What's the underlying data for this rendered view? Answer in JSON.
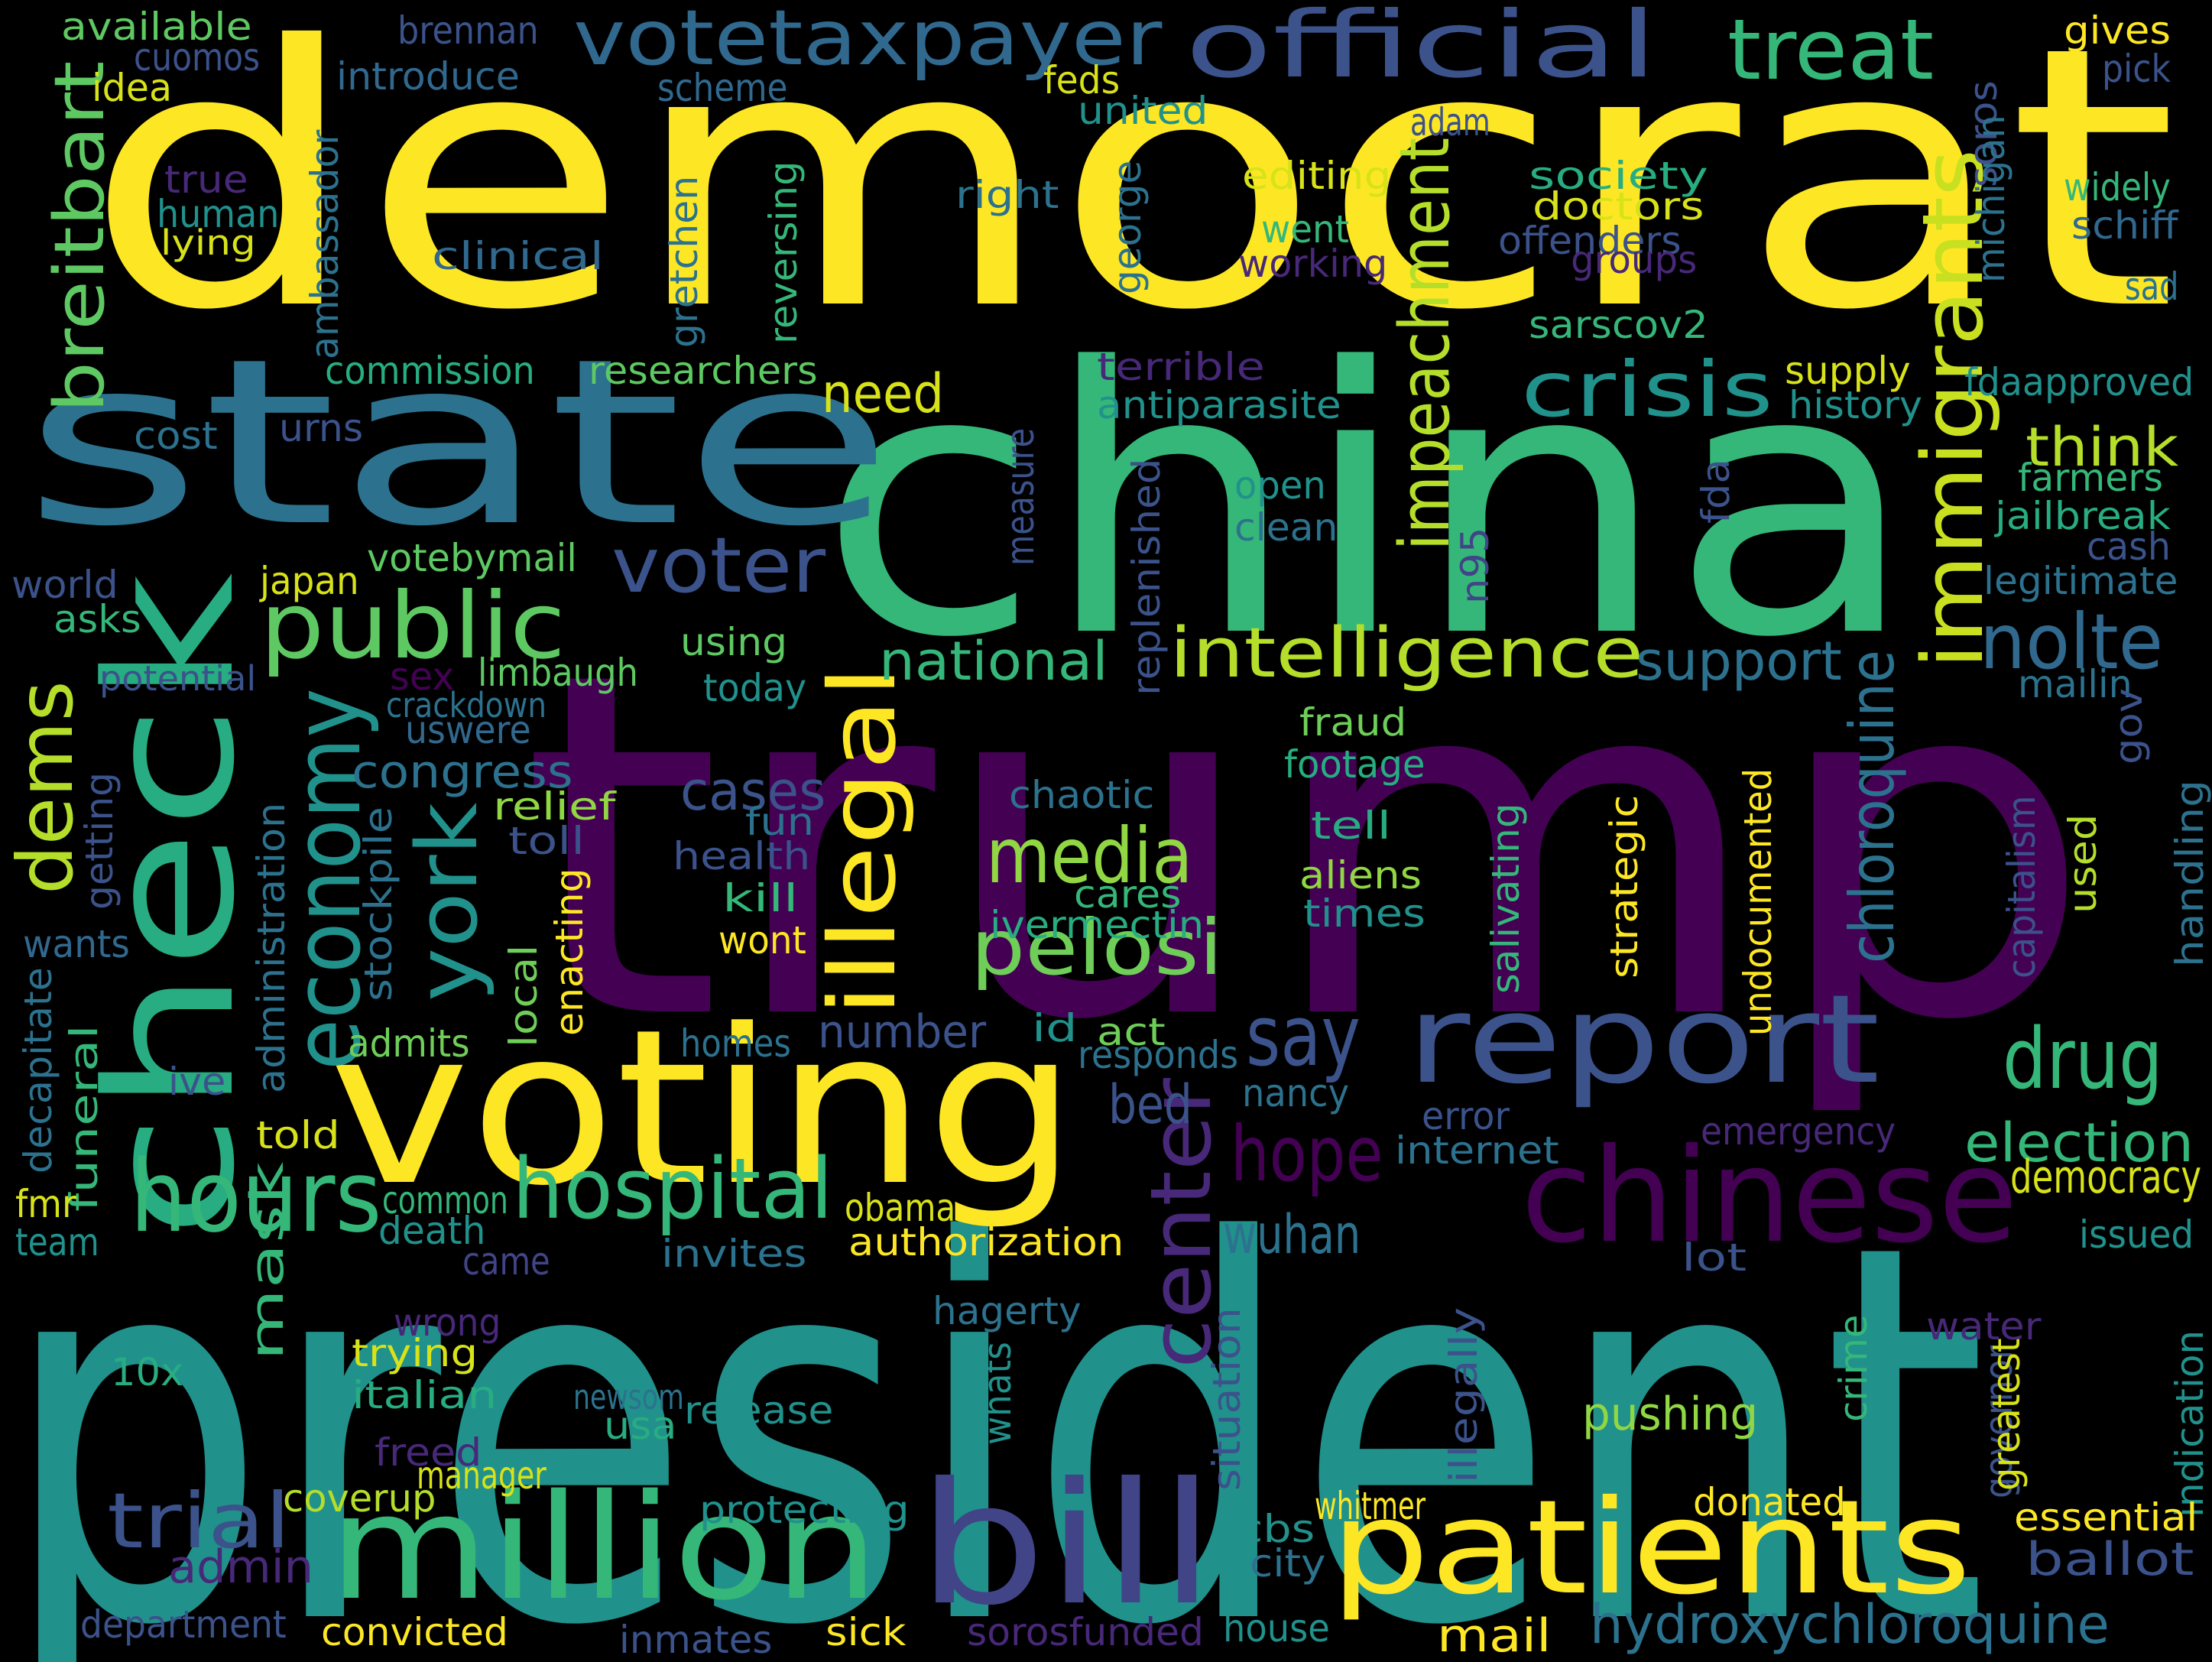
{
  "words": [
    {
      "text": "trump",
      "color": "#440154"
    },
    {
      "text": "president",
      "color": "#21918c"
    },
    {
      "text": "democrat",
      "color": "#fde725"
    },
    {
      "text": "china",
      "color": "#35b779"
    },
    {
      "text": "state",
      "color": "#2c728e"
    },
    {
      "text": "check",
      "color": "#27ad81"
    },
    {
      "text": "voting",
      "color": "#fde725"
    },
    {
      "text": "million",
      "color": "#35b779"
    },
    {
      "text": "bill",
      "color": "#414487"
    },
    {
      "text": "patients",
      "color": "#fde725"
    },
    {
      "text": "report",
      "color": "#3b528b"
    },
    {
      "text": "official",
      "color": "#3b528b"
    },
    {
      "text": "chinese",
      "color": "#440154"
    },
    {
      "text": "votetaxpayer",
      "color": "#31688e"
    },
    {
      "text": "treat",
      "color": "#35b779"
    },
    {
      "text": "hours",
      "color": "#35b779"
    },
    {
      "text": "hospital",
      "color": "#35b779"
    },
    {
      "text": "public",
      "color": "#5ec962"
    },
    {
      "text": "crisis",
      "color": "#21918c"
    },
    {
      "text": "voter",
      "color": "#3b528b"
    },
    {
      "text": "intelligence",
      "color": "#b5de2b"
    },
    {
      "text": "media",
      "color": "#90d743"
    },
    {
      "text": "pelosi",
      "color": "#6ece58"
    },
    {
      "text": "drug",
      "color": "#35b779"
    },
    {
      "text": "hope",
      "color": "#440154"
    },
    {
      "text": "nolte",
      "color": "#31688e"
    },
    {
      "text": "say",
      "color": "#3b528b"
    },
    {
      "text": "trial",
      "color": "#3b528b"
    },
    {
      "text": "immigrants",
      "color": "#c8e020"
    },
    {
      "text": "impeachment",
      "color": "#b5de2b"
    },
    {
      "text": "economy",
      "color": "#21918c"
    },
    {
      "text": "york",
      "color": "#21918c"
    },
    {
      "text": "illegal",
      "color": "#fde725"
    },
    {
      "text": "center",
      "color": "#482878"
    },
    {
      "text": "breitbart",
      "color": "#5ec962"
    },
    {
      "text": "dems",
      "color": "#b5de2b"
    },
    {
      "text": "hydroxychloroquine",
      "color": "#2c728e"
    },
    {
      "text": "election",
      "color": "#35b779"
    },
    {
      "text": "chloroquine",
      "color": "#2c728e"
    },
    {
      "text": "need",
      "color": "#d8e219"
    },
    {
      "text": "national",
      "color": "#35b779"
    },
    {
      "text": "congress",
      "color": "#2c728e"
    },
    {
      "text": "cases",
      "color": "#3b528b"
    },
    {
      "text": "wuhan",
      "color": "#2c728e"
    },
    {
      "text": "mail",
      "color": "#fde725"
    },
    {
      "text": "ballot",
      "color": "#3b528b"
    },
    {
      "text": "think",
      "color": "#b5de2b"
    },
    {
      "text": "support",
      "color": "#2c728e"
    },
    {
      "text": "admin",
      "color": "#482878"
    },
    {
      "text": "bed",
      "color": "#3b528b"
    },
    {
      "text": "number",
      "color": "#3b528b"
    },
    {
      "text": "mask",
      "color": "#35b779"
    },
    {
      "text": "pushing",
      "color": "#90d743"
    },
    {
      "text": "democracy",
      "color": "#d8e219"
    },
    {
      "text": "authorization",
      "color": "#fde725"
    },
    {
      "text": "available",
      "color": "#5ec962"
    },
    {
      "text": "cuomos",
      "color": "#3b528b"
    },
    {
      "text": "brennan",
      "color": "#3b528b"
    },
    {
      "text": "introduce",
      "color": "#31688e"
    },
    {
      "text": "idea",
      "color": "#d8e219"
    },
    {
      "text": "scheme",
      "color": "#31688e"
    },
    {
      "text": "feds",
      "color": "#d8e219"
    },
    {
      "text": "united",
      "color": "#21918c"
    },
    {
      "text": "adam",
      "color": "#3b528b"
    },
    {
      "text": "soros",
      "color": "#3b528b"
    },
    {
      "text": "gives",
      "color": "#fde725"
    },
    {
      "text": "pick",
      "color": "#3b528b"
    },
    {
      "text": "true",
      "color": "#482878"
    },
    {
      "text": "human",
      "color": "#21918c"
    },
    {
      "text": "lying",
      "color": "#d8e219"
    },
    {
      "text": "ambassador",
      "color": "#2c728e"
    },
    {
      "text": "gretchen",
      "color": "#2c728e"
    },
    {
      "text": "reversing",
      "color": "#35b779"
    },
    {
      "text": "right",
      "color": "#2c728e"
    },
    {
      "text": "george",
      "color": "#2c728e"
    },
    {
      "text": "editing",
      "color": "#d8e219"
    },
    {
      "text": "society",
      "color": "#27ad81"
    },
    {
      "text": "doctors",
      "color": "#d8e219"
    },
    {
      "text": "offenders",
      "color": "#3b528b"
    },
    {
      "text": "groups",
      "color": "#482878"
    },
    {
      "text": "went",
      "color": "#35b779"
    },
    {
      "text": "working",
      "color": "#482878"
    },
    {
      "text": "clinical",
      "color": "#31688e"
    },
    {
      "text": "michigan",
      "color": "#2c728e"
    },
    {
      "text": "widely",
      "color": "#35b779"
    },
    {
      "text": "schiff",
      "color": "#31688e"
    },
    {
      "text": "sad",
      "color": "#2c728e"
    },
    {
      "text": "sarscov2",
      "color": "#35b779"
    },
    {
      "text": "commission",
      "color": "#27ad81"
    },
    {
      "text": "researchers",
      "color": "#5ec962"
    },
    {
      "text": "terrible",
      "color": "#482878"
    },
    {
      "text": "antiparasite",
      "color": "#21918c"
    },
    {
      "text": "supply",
      "color": "#d8e219"
    },
    {
      "text": "history",
      "color": "#21918c"
    },
    {
      "text": "fdaapproved",
      "color": "#21918c"
    },
    {
      "text": "cost",
      "color": "#2c728e"
    },
    {
      "text": "urns",
      "color": "#3b528b"
    },
    {
      "text": "farmers",
      "color": "#35b779"
    },
    {
      "text": "open",
      "color": "#21918c"
    },
    {
      "text": "clean",
      "color": "#2c728e"
    },
    {
      "text": "measure",
      "color": "#3b528b"
    },
    {
      "text": "replenished",
      "color": "#3b528b"
    },
    {
      "text": "fda",
      "color": "#3b528b"
    },
    {
      "text": "jailbreak",
      "color": "#27ad81"
    },
    {
      "text": "cash",
      "color": "#3b528b"
    },
    {
      "text": "world",
      "color": "#3b528b"
    },
    {
      "text": "asks",
      "color": "#35b779"
    },
    {
      "text": "japan",
      "color": "#d8e219"
    },
    {
      "text": "votebymail",
      "color": "#5ec962"
    },
    {
      "text": "n95",
      "color": "#414487"
    },
    {
      "text": "legitimate",
      "color": "#2c728e"
    },
    {
      "text": "potential",
      "color": "#3b528b"
    },
    {
      "text": "sex",
      "color": "#440154"
    },
    {
      "text": "limbaugh",
      "color": "#5ec962"
    },
    {
      "text": "using",
      "color": "#5ec962"
    },
    {
      "text": "today",
      "color": "#21918c"
    },
    {
      "text": "crackdown",
      "color": "#2c728e"
    },
    {
      "text": "uswere",
      "color": "#31688e"
    },
    {
      "text": "mailin",
      "color": "#2c728e"
    },
    {
      "text": "gov",
      "color": "#3b528b"
    },
    {
      "text": "fraud",
      "color": "#6ece58"
    },
    {
      "text": "footage",
      "color": "#27ad81"
    },
    {
      "text": "chaotic",
      "color": "#2c728e"
    },
    {
      "text": "getting",
      "color": "#3b528b"
    },
    {
      "text": "relief",
      "color": "#90d743"
    },
    {
      "text": "toll",
      "color": "#3b528b"
    },
    {
      "text": "fun",
      "color": "#2c728e"
    },
    {
      "text": "health",
      "color": "#3b528b"
    },
    {
      "text": "tell",
      "color": "#27ad81"
    },
    {
      "text": "aliens",
      "color": "#90d743"
    },
    {
      "text": "times",
      "color": "#21918c"
    },
    {
      "text": "cares",
      "color": "#35b779"
    },
    {
      "text": "ivermectin",
      "color": "#27ad81"
    },
    {
      "text": "kill",
      "color": "#35b779"
    },
    {
      "text": "wont",
      "color": "#fde725"
    },
    {
      "text": "administration",
      "color": "#2c728e"
    },
    {
      "text": "stockpile",
      "color": "#2c728e"
    },
    {
      "text": "local",
      "color": "#6ece58"
    },
    {
      "text": "enacting",
      "color": "#fde725"
    },
    {
      "text": "salivating",
      "color": "#35b779"
    },
    {
      "text": "strategic",
      "color": "#fde725"
    },
    {
      "text": "undocumented",
      "color": "#fde725"
    },
    {
      "text": "capitalism",
      "color": "#3b528b"
    },
    {
      "text": "used",
      "color": "#b5de2b"
    },
    {
      "text": "handling",
      "color": "#2c728e"
    },
    {
      "text": "wants",
      "color": "#31688e"
    },
    {
      "text": "decapitate",
      "color": "#2c728e"
    },
    {
      "text": "admits",
      "color": "#6ece58"
    },
    {
      "text": "homes",
      "color": "#2c728e"
    },
    {
      "text": "id",
      "color": "#21918c"
    },
    {
      "text": "act",
      "color": "#6ece58"
    },
    {
      "text": "responds",
      "color": "#2c728e"
    },
    {
      "text": "ive",
      "color": "#3b528b"
    },
    {
      "text": "told",
      "color": "#d8e219"
    },
    {
      "text": "funeral",
      "color": "#35b779"
    },
    {
      "text": "nancy",
      "color": "#2c728e"
    },
    {
      "text": "error",
      "color": "#3b528b"
    },
    {
      "text": "internet",
      "color": "#2c728e"
    },
    {
      "text": "emergency",
      "color": "#482878"
    },
    {
      "text": "fmr",
      "color": "#d8e219"
    },
    {
      "text": "common",
      "color": "#35b779"
    },
    {
      "text": "death",
      "color": "#21918c"
    },
    {
      "text": "obama",
      "color": "#d8e219"
    },
    {
      "text": "team",
      "color": "#21918c"
    },
    {
      "text": "came",
      "color": "#414487"
    },
    {
      "text": "invites",
      "color": "#2c728e"
    },
    {
      "text": "lot",
      "color": "#3b528b"
    },
    {
      "text": "issued",
      "color": "#21918c"
    },
    {
      "text": "hagerty",
      "color": "#2c728e"
    },
    {
      "text": "wrong",
      "color": "#482878"
    },
    {
      "text": "trying",
      "color": "#d8e219"
    },
    {
      "text": "situation",
      "color": "#3b528b"
    },
    {
      "text": "whats",
      "color": "#21918c"
    },
    {
      "text": "illegally",
      "color": "#3b528b"
    },
    {
      "text": "crime",
      "color": "#35b779"
    },
    {
      "text": "governor",
      "color": "#3b528b"
    },
    {
      "text": "greatest",
      "color": "#d8e219"
    },
    {
      "text": "water",
      "color": "#482878"
    },
    {
      "text": "indication",
      "color": "#21918c"
    },
    {
      "text": "10x",
      "color": "#27ad81"
    },
    {
      "text": "italian",
      "color": "#27ad81"
    },
    {
      "text": "newsom",
      "color": "#2c728e"
    },
    {
      "text": "release",
      "color": "#21918c"
    },
    {
      "text": "usa",
      "color": "#27ad81"
    },
    {
      "text": "freed",
      "color": "#482878"
    },
    {
      "text": "manager",
      "color": "#d8e219"
    },
    {
      "text": "coverup",
      "color": "#b5de2b"
    },
    {
      "text": "protecting",
      "color": "#21918c"
    },
    {
      "text": "whitmer",
      "color": "#fde725"
    },
    {
      "text": "cbs",
      "color": "#21918c"
    },
    {
      "text": "donated",
      "color": "#fde725"
    },
    {
      "text": "essential",
      "color": "#fde725"
    },
    {
      "text": "city",
      "color": "#2c728e"
    },
    {
      "text": "department",
      "color": "#3b528b"
    },
    {
      "text": "convicted",
      "color": "#fde725"
    },
    {
      "text": "inmates",
      "color": "#3b528b"
    },
    {
      "text": "sick",
      "color": "#fde725"
    },
    {
      "text": "sorosfunded",
      "color": "#482878"
    },
    {
      "text": "house",
      "color": "#21918c"
    }
  ]
}
